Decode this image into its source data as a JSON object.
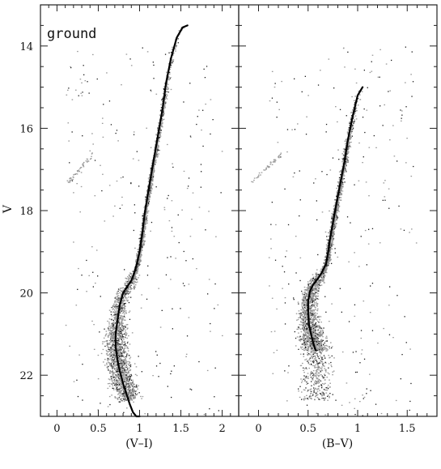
{
  "chart_data": [
    {
      "type": "scatter",
      "panel_label": "ground",
      "xlabel": "(V–I)",
      "ylabel": "V",
      "xlim": [
        -0.2,
        2.2
      ],
      "ylim": [
        23,
        13
      ],
      "xticks": [
        0,
        0.5,
        1,
        1.5,
        2
      ],
      "xtick_labels": [
        "0",
        "0.5",
        "1",
        "1.5",
        "2"
      ],
      "yticks": [
        14,
        16,
        18,
        20,
        22
      ],
      "ytick_labels": [
        "14",
        "16",
        "18",
        "20",
        "22"
      ],
      "grid": false,
      "series": [
        {
          "kind": "fiducial-line",
          "x": [
            1.58,
            1.52,
            1.45,
            1.38,
            1.32,
            1.28,
            1.22,
            1.16,
            1.1,
            1.06,
            1.03,
            1.0,
            0.96,
            0.93,
            0.9,
            0.85,
            0.8,
            0.76,
            0.73,
            0.71,
            0.71,
            0.73,
            0.76,
            0.8,
            0.84,
            0.88,
            0.92,
            0.96,
            1.0
          ],
          "y": [
            13.5,
            13.55,
            13.8,
            14.3,
            14.9,
            15.5,
            16.2,
            16.9,
            17.6,
            18.1,
            18.6,
            19.0,
            19.35,
            19.55,
            19.7,
            19.85,
            20.0,
            20.3,
            20.7,
            21.0,
            21.3,
            21.6,
            21.9,
            22.2,
            22.45,
            22.7,
            22.9,
            23.1,
            23.3
          ]
        }
      ]
    },
    {
      "type": "scatter",
      "xlabel": "(B–V)",
      "xlim": [
        -0.2,
        1.8
      ],
      "ylim": [
        23,
        13
      ],
      "xticks": [
        0,
        0.5,
        1,
        1.5
      ],
      "xtick_labels": [
        "0",
        "0.5",
        "1",
        "1.5"
      ],
      "grid": false,
      "series": [
        {
          "kind": "fiducial-line",
          "x": [
            1.05,
            1.0,
            0.95,
            0.9,
            0.86,
            0.82,
            0.78,
            0.75,
            0.72,
            0.7,
            0.68,
            0.64,
            0.6,
            0.55,
            0.52,
            0.5,
            0.5,
            0.51,
            0.53,
            0.55,
            0.57,
            0.58
          ],
          "y": [
            15.0,
            15.2,
            15.7,
            16.3,
            16.9,
            17.4,
            17.9,
            18.3,
            18.7,
            19.05,
            19.3,
            19.5,
            19.65,
            19.8,
            19.95,
            20.2,
            20.5,
            20.8,
            21.0,
            21.2,
            21.35,
            21.4
          ]
        }
      ]
    }
  ]
}
